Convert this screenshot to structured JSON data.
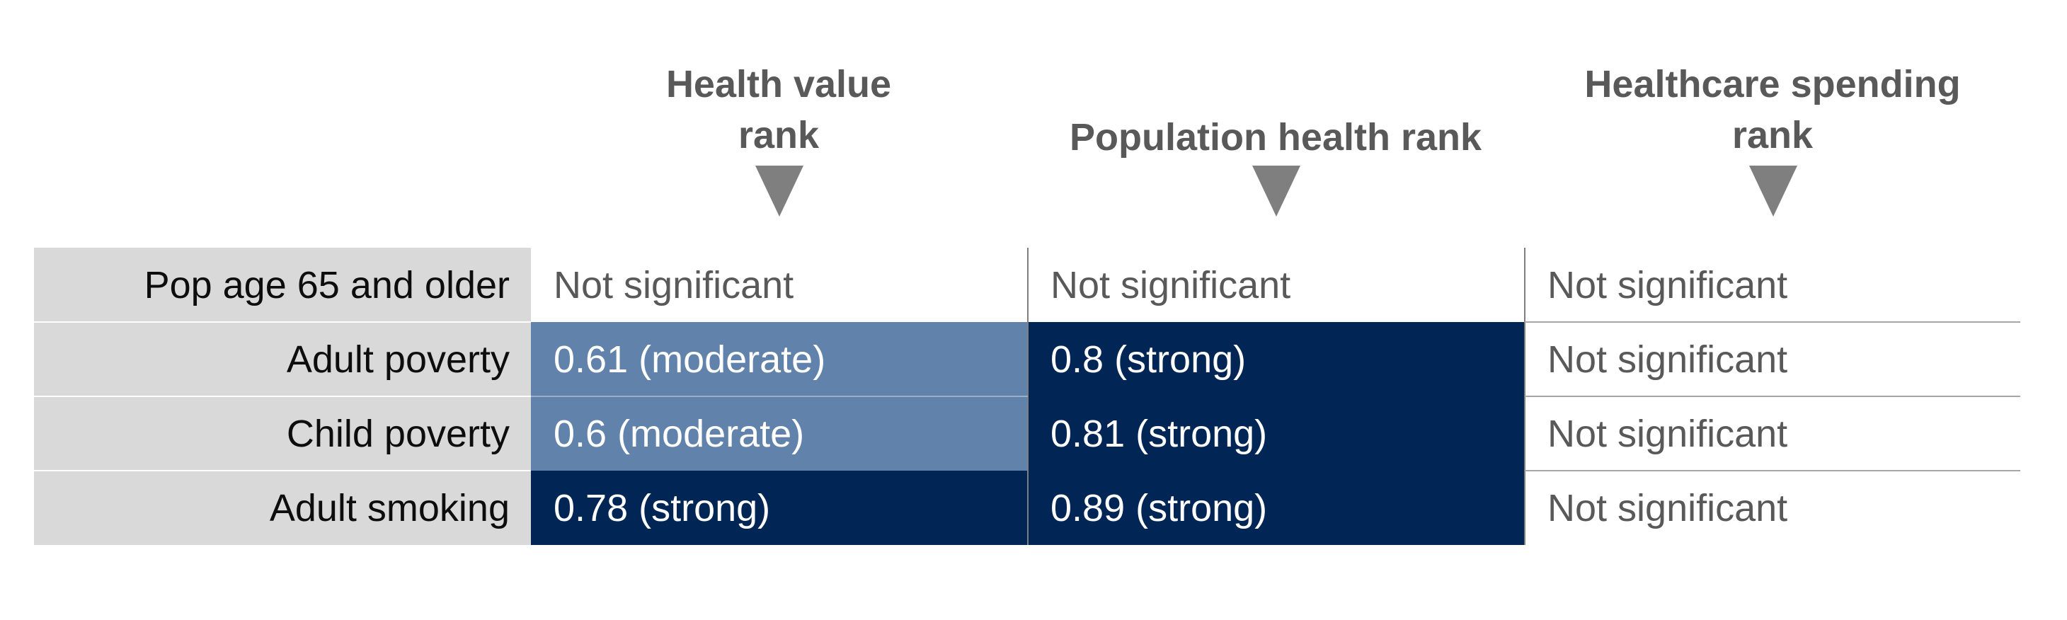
{
  "chart_data": {
    "type": "table",
    "columns": [
      {
        "line1": "Health value",
        "line2": "rank"
      },
      {
        "line1": "Population health rank",
        "line2": ""
      },
      {
        "line1": "Healthcare spending",
        "line2": "rank"
      }
    ],
    "rows": [
      {
        "label": "Pop age 65 and older",
        "cells": [
          {
            "text": "Not significant",
            "strength": "none"
          },
          {
            "text": "Not significant",
            "strength": "none"
          },
          {
            "text": "Not significant",
            "strength": "none"
          }
        ]
      },
      {
        "label": "Adult poverty",
        "cells": [
          {
            "text": "0.61 (moderate)",
            "value": 0.61,
            "strength": "moderate"
          },
          {
            "text": "0.8 (strong)",
            "value": 0.8,
            "strength": "strong"
          },
          {
            "text": "Not significant",
            "strength": "none"
          }
        ]
      },
      {
        "label": "Child poverty",
        "cells": [
          {
            "text": "0.6 (moderate)",
            "value": 0.6,
            "strength": "moderate"
          },
          {
            "text": "0.81 (strong)",
            "value": 0.81,
            "strength": "strong"
          },
          {
            "text": "Not significant",
            "strength": "none"
          }
        ]
      },
      {
        "label": "Adult smoking",
        "cells": [
          {
            "text": "0.78 (strong)",
            "value": 0.78,
            "strength": "strong"
          },
          {
            "text": "0.89 (strong)",
            "value": 0.89,
            "strength": "strong"
          },
          {
            "text": "Not significant",
            "strength": "none"
          }
        ]
      }
    ],
    "colors": {
      "header_text": "#595959",
      "arrow": "#7f7f7f",
      "label_background": "#d9d9d9",
      "moderate": "#6183ab",
      "strong": "#012655",
      "not_significant_text": "#595959"
    }
  }
}
